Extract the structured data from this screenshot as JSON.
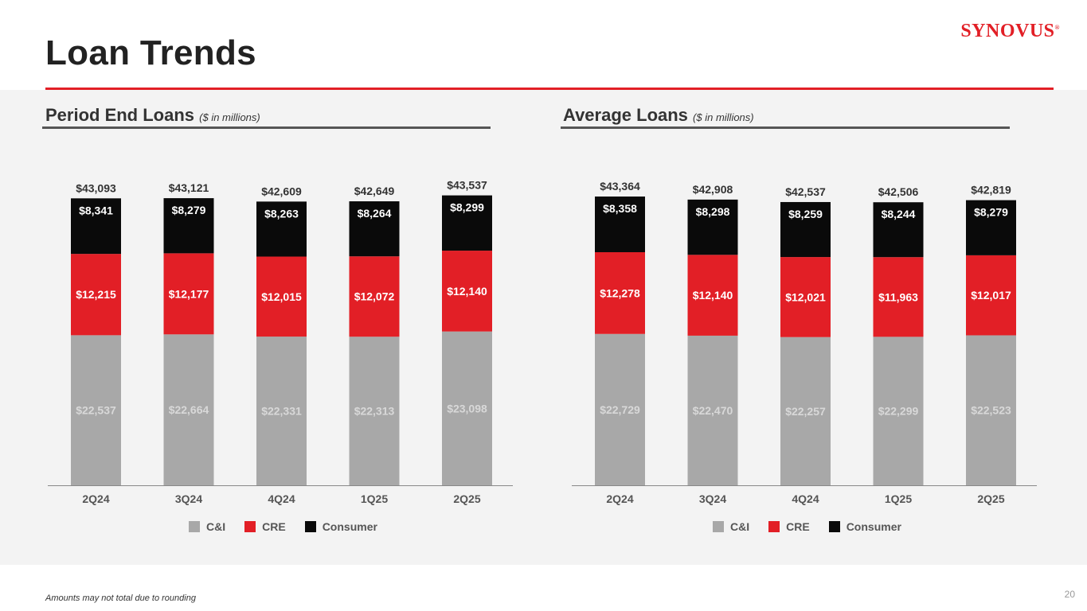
{
  "title": "Loan Trends",
  "logo": "SYNOVUS",
  "logo_mark": "®",
  "footnote": "Amounts may not total due to rounding",
  "page_number": "20",
  "colors": {
    "ci": "#a8a8a8",
    "cre": "#e21f26",
    "consumer": "#0a0a0a",
    "accent": "#e21f26"
  },
  "legend": {
    "ci": "C&I",
    "cre": "CRE",
    "consumer": "Consumer"
  },
  "chart_data": [
    {
      "type": "bar",
      "stacked": true,
      "title": "Period End Loans",
      "subtitle": "($ in millions)",
      "categories": [
        "2Q24",
        "3Q24",
        "4Q24",
        "1Q25",
        "2Q25"
      ],
      "series": [
        {
          "name": "C&I",
          "values": [
            22537,
            22664,
            22331,
            22313,
            23098
          ]
        },
        {
          "name": "CRE",
          "values": [
            12215,
            12177,
            12015,
            12072,
            12140
          ]
        },
        {
          "name": "Consumer",
          "values": [
            8341,
            8279,
            8263,
            8264,
            8299
          ]
        }
      ],
      "totals": [
        43093,
        43121,
        42609,
        42649,
        43537
      ],
      "labels": {
        "ci": [
          "$22,537",
          "$22,664",
          "$22,331",
          "$22,313",
          "$23,098"
        ],
        "cre": [
          "$12,215",
          "$12,177",
          "$12,015",
          "$12,072",
          "$12,140"
        ],
        "consumer": [
          "$8,341",
          "$8,279",
          "$8,263",
          "$8,264",
          "$8,299"
        ],
        "totals": [
          "$43,093",
          "$43,121",
          "$42,609",
          "$42,649",
          "$43,537"
        ]
      },
      "ylim": [
        0,
        45000
      ]
    },
    {
      "type": "bar",
      "stacked": true,
      "title": "Average Loans",
      "subtitle": "($ in millions)",
      "categories": [
        "2Q24",
        "3Q24",
        "4Q24",
        "1Q25",
        "2Q25"
      ],
      "series": [
        {
          "name": "C&I",
          "values": [
            22729,
            22470,
            22257,
            22299,
            22523
          ]
        },
        {
          "name": "CRE",
          "values": [
            12278,
            12140,
            12021,
            11963,
            12017
          ]
        },
        {
          "name": "Consumer",
          "values": [
            8358,
            8298,
            8259,
            8244,
            8279
          ]
        }
      ],
      "totals": [
        43364,
        42908,
        42537,
        42506,
        42819
      ],
      "labels": {
        "ci": [
          "$22,729",
          "$22,470",
          "$22,257",
          "$22,299",
          "$22,523"
        ],
        "cre": [
          "$12,278",
          "$12,140",
          "$12,021",
          "$11,963",
          "$12,017"
        ],
        "consumer": [
          "$8,358",
          "$8,298",
          "$8,259",
          "$8,244",
          "$8,279"
        ],
        "totals": [
          "$43,364",
          "$42,908",
          "$42,537",
          "$42,506",
          "$42,819"
        ]
      },
      "ylim": [
        0,
        45000
      ]
    }
  ]
}
